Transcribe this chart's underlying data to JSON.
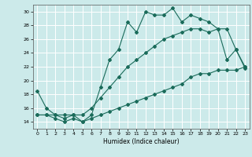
{
  "xlabel": "Humidex (Indice chaleur)",
  "bg_color": "#cceaea",
  "grid_color": "#ffffff",
  "line_color": "#1a6b5a",
  "xlim": [
    -0.5,
    23.5
  ],
  "ylim": [
    13,
    31
  ],
  "xticks": [
    0,
    1,
    2,
    3,
    4,
    5,
    6,
    7,
    8,
    9,
    10,
    11,
    12,
    13,
    14,
    15,
    16,
    17,
    18,
    19,
    20,
    21,
    22,
    23
  ],
  "yticks": [
    14,
    16,
    18,
    20,
    22,
    24,
    26,
    28,
    30
  ],
  "line1_x": [
    0,
    1,
    2,
    3,
    4,
    5,
    6,
    7,
    8,
    9,
    10,
    11,
    12,
    13,
    14,
    15,
    16,
    17,
    18,
    19,
    20,
    21,
    22,
    23
  ],
  "line1_y": [
    18.5,
    16.0,
    15.0,
    14.5,
    15.0,
    14.0,
    15.0,
    19.0,
    23.0,
    24.5,
    28.5,
    27.0,
    30.0,
    29.5,
    29.5,
    30.5,
    28.5,
    29.5,
    29.0,
    28.5,
    27.5,
    23.0,
    24.5,
    21.8
  ],
  "line2_x": [
    0,
    1,
    2,
    3,
    4,
    5,
    6,
    7,
    8,
    9,
    10,
    11,
    12,
    13,
    14,
    15,
    16,
    17,
    18,
    19,
    20,
    21,
    22,
    23
  ],
  "line2_y": [
    15.0,
    15.0,
    15.0,
    15.0,
    15.0,
    15.0,
    16.0,
    17.5,
    19.0,
    20.5,
    22.0,
    23.0,
    24.0,
    25.0,
    26.0,
    26.5,
    27.0,
    27.5,
    27.5,
    27.0,
    27.5,
    27.5,
    24.5,
    22.0
  ],
  "line3_x": [
    0,
    1,
    2,
    3,
    4,
    5,
    6,
    7,
    8,
    9,
    10,
    11,
    12,
    13,
    14,
    15,
    16,
    17,
    18,
    19,
    20,
    21,
    22,
    23
  ],
  "line3_y": [
    15.0,
    15.0,
    14.5,
    14.0,
    14.5,
    14.0,
    14.5,
    15.0,
    15.5,
    16.0,
    16.5,
    17.0,
    17.5,
    18.0,
    18.5,
    19.0,
    19.5,
    20.5,
    21.0,
    21.0,
    21.5,
    21.5,
    21.5,
    22.0
  ]
}
